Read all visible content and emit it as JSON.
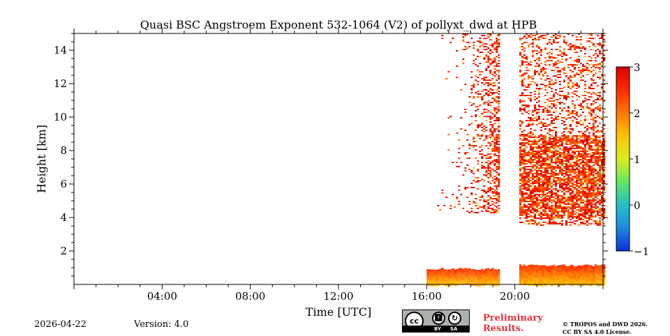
{
  "chart_data": {
    "type": "heatmap",
    "title": "Quasi BSC Angstroem Exponent 532-1064 (V2) of pollyxt_dwd at HPB",
    "xlabel": "Time [UTC]",
    "ylabel": "Height [km]",
    "x_unit": "hours UTC",
    "xlim": [
      0,
      24
    ],
    "ylim": [
      0,
      15
    ],
    "x_ticks": [
      {
        "value": 4,
        "label": "04:00"
      },
      {
        "value": 8,
        "label": "08:00"
      },
      {
        "value": 12,
        "label": "12:00"
      },
      {
        "value": 16,
        "label": "16:00"
      },
      {
        "value": 20,
        "label": "20:00"
      }
    ],
    "y_ticks": [
      {
        "value": 2,
        "label": "2"
      },
      {
        "value": 4,
        "label": "4"
      },
      {
        "value": 6,
        "label": "6"
      },
      {
        "value": 8,
        "label": "8"
      },
      {
        "value": 10,
        "label": "10"
      },
      {
        "value": 12,
        "label": "12"
      },
      {
        "value": 14,
        "label": "14"
      }
    ],
    "colorbar": {
      "range": [
        -1,
        3
      ],
      "ticks": [
        {
          "value": 3,
          "label": "3"
        },
        {
          "value": 2,
          "label": "2"
        },
        {
          "value": 1,
          "label": "1"
        },
        {
          "value": 0,
          "label": "0"
        },
        {
          "value": -1,
          "label": "−1"
        }
      ],
      "colormap": [
        "#0a2fd8",
        "#1f8ae0",
        "#22c0c8",
        "#63e660",
        "#d8f01e",
        "#ffc400",
        "#ff7800",
        "#ff2a00",
        "#d80000"
      ]
    },
    "data_regions": [
      {
        "name": "boundary layer",
        "t_start": 16.0,
        "t_end": 19.3,
        "h_start": 0.0,
        "h_end": 1.0,
        "value": 1.9
      },
      {
        "name": "boundary layer",
        "t_start": 20.2,
        "t_end": 24.0,
        "h_start": 0.0,
        "h_end": 1.2,
        "value": 1.9
      },
      {
        "name": "aerosol layer",
        "t_start": 16.0,
        "t_end": 19.3,
        "h_start": 4.3,
        "h_end": 15.0,
        "value": 2.6,
        "note": "sparse, denser toward 19 UTC"
      },
      {
        "name": "aerosol layer",
        "t_start": 20.2,
        "t_end": 24.0,
        "h_start": 3.5,
        "h_end": 15.0,
        "value": 2.5,
        "note": "dense 3.5-9 km, scattered above"
      }
    ]
  },
  "footer": {
    "date": "2026-04-22",
    "version": "Version: 4.0",
    "preliminary_line1": "Preliminary",
    "preliminary_line2": "Results.",
    "copyright_line1": "© TROPOS and DWD 2026.",
    "copyright_line2": "CC BY SA 4.0 License.",
    "license_badge": {
      "cc": "cc",
      "by": "BY",
      "sa": "SA"
    }
  }
}
